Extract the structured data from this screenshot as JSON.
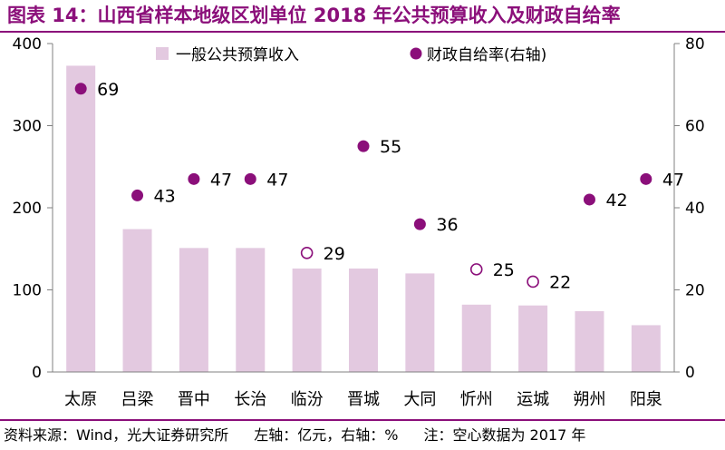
{
  "title": "图表 14：山西省样本地级区划单位 2018 年公共预算收入及财政自给率",
  "footer": {
    "source": "资料来源：Wind，光大证券研究所",
    "units": "左轴：亿元，右轴：%",
    "note": "注：空心数据为 2017 年"
  },
  "colors": {
    "accent": "#8B0F7A",
    "bar": "#E3C9E0",
    "dot": "#8B0F7A"
  },
  "chart_data": {
    "type": "bar",
    "categories": [
      "太原",
      "吕梁",
      "晋中",
      "长治",
      "临汾",
      "晋城",
      "大同",
      "忻州",
      "运城",
      "朔州",
      "阳泉"
    ],
    "series": [
      {
        "name": "一般公共预算收入",
        "axis": "left",
        "type": "bar",
        "values": [
          373,
          174,
          151,
          151,
          126,
          126,
          120,
          82,
          81,
          74,
          57
        ]
      },
      {
        "name": "财政自给率(右轴)",
        "axis": "right",
        "type": "scatter",
        "values": [
          69,
          43,
          47,
          47,
          29,
          55,
          36,
          25,
          22,
          42,
          47
        ],
        "labels": [
          "69",
          "43",
          "47",
          "47",
          "29",
          "55",
          "36",
          "25",
          "22",
          "42",
          "47"
        ],
        "hollow": [
          false,
          false,
          false,
          false,
          true,
          false,
          false,
          true,
          true,
          false,
          false
        ]
      }
    ],
    "y_left": {
      "lim": [
        0,
        400
      ],
      "ticks": [
        "0",
        "100",
        "200",
        "300",
        "400"
      ]
    },
    "y_right": {
      "lim": [
        0,
        80
      ],
      "ticks": [
        "0",
        "20",
        "40",
        "60",
        "80"
      ]
    },
    "legend": {
      "position": "top"
    },
    "grid": false
  }
}
